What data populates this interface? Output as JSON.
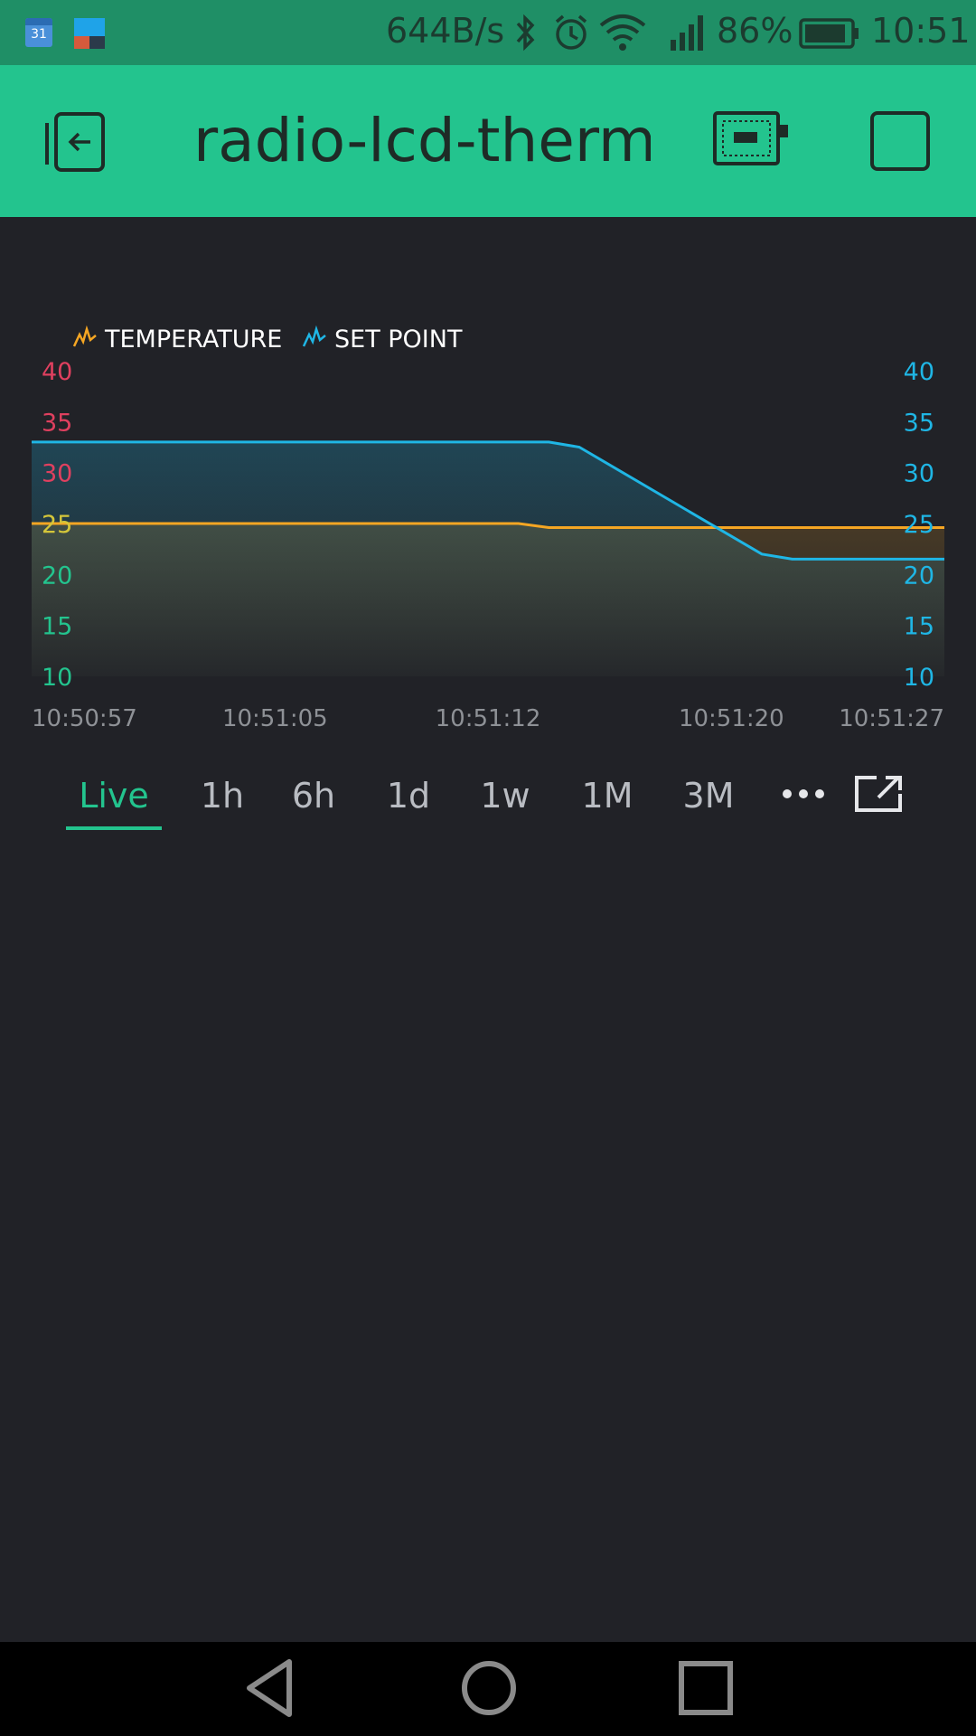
{
  "status_bar": {
    "calendar_day": "31",
    "net_speed": "644B/s",
    "battery_percent": "86%",
    "time": "10:51",
    "icons": [
      "calendar-icon",
      "app-icon",
      "bluetooth-icon",
      "alarm-icon",
      "wifi-icon",
      "signal-icon",
      "battery-icon"
    ]
  },
  "header": {
    "title": "radio-lcd-thermostat",
    "icons": [
      "back-icon",
      "device-icon",
      "stop-icon"
    ],
    "color": "#23c48e"
  },
  "chart_data": {
    "type": "line",
    "legend": [
      "TEMPERATURE",
      "SET POINT"
    ],
    "x": [
      "10:50:57",
      "10:51:05",
      "10:51:12",
      "10:51:20",
      "10:51:27"
    ],
    "y_left_ticks": [
      "40",
      "35",
      "30",
      "25",
      "20",
      "15",
      "10"
    ],
    "y_right_ticks": [
      "40",
      "35",
      "30",
      "25",
      "20",
      "15",
      "10"
    ],
    "ylim": [
      10,
      40
    ],
    "series": [
      {
        "name": "TEMPERATURE",
        "color": "#f5a623",
        "points": [
          [
            "10:50:57",
            25
          ],
          [
            "10:51:06",
            25
          ],
          [
            "10:51:13",
            25
          ],
          [
            "10:51:14",
            24.6
          ],
          [
            "10:51:27",
            24.6
          ]
        ]
      },
      {
        "name": "SET POINT",
        "color": "#1fb6e5",
        "points": [
          [
            "10:50:57",
            33
          ],
          [
            "10:51:06",
            33
          ],
          [
            "10:51:14",
            33
          ],
          [
            "10:51:15",
            32.5
          ],
          [
            "10:51:21",
            22
          ],
          [
            "10:51:22",
            21.5
          ],
          [
            "10:51:27",
            21.5
          ]
        ]
      }
    ],
    "left_tick_colors": [
      "#e0405f",
      "#e0405f",
      "#e0405f",
      "#d4c63a",
      "#23c48e",
      "#23c48e",
      "#23c48e"
    ],
    "right_tick_color": "#1fb6e5",
    "grid": false,
    "legend_position": "top-left"
  },
  "periods": {
    "tabs": [
      "Live",
      "1h",
      "6h",
      "1d",
      "1w",
      "1M",
      "3M"
    ],
    "active": "Live",
    "more_icon": "more-icon",
    "expand_icon": "expand-icon"
  },
  "nav_bar": {
    "icons": [
      "back-triangle-icon",
      "home-circle-icon",
      "recents-square-icon"
    ]
  }
}
